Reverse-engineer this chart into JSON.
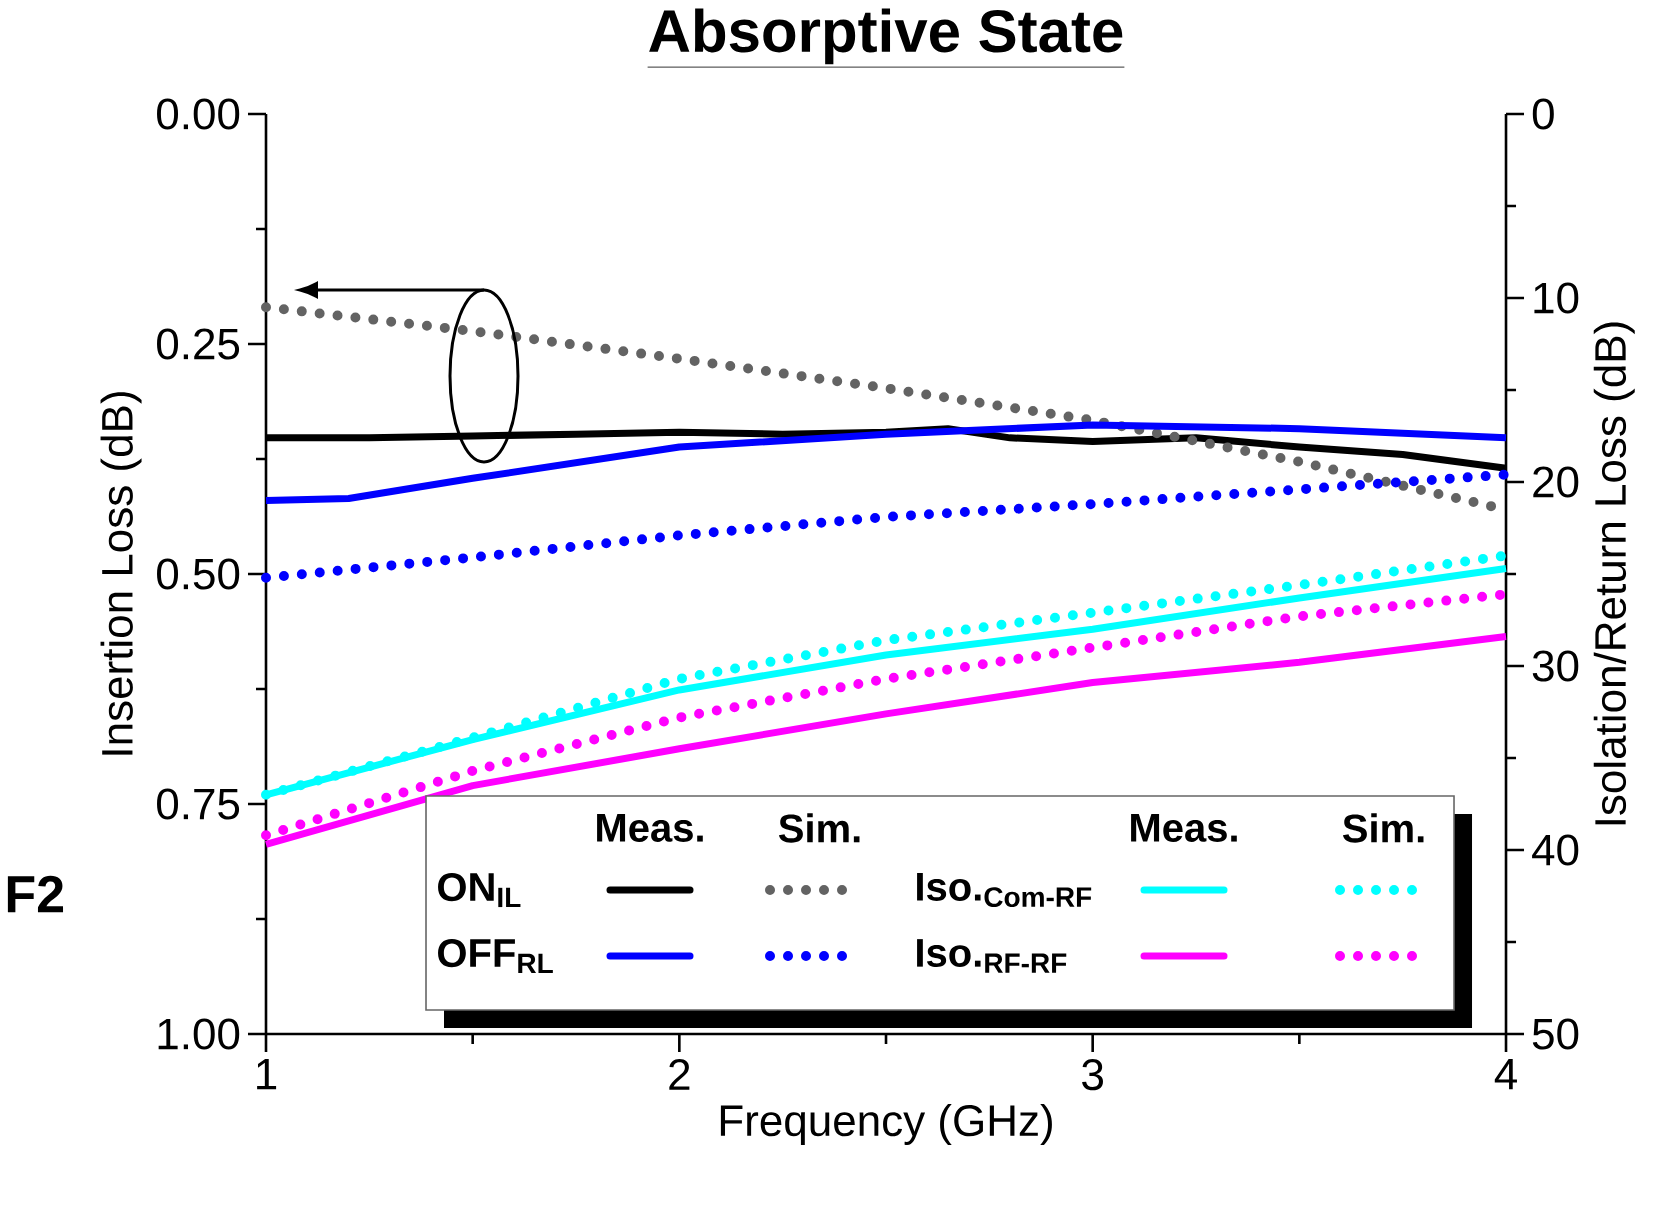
{
  "chart_data": {
    "type": "line",
    "title": "Absorptive State",
    "xlabel": "Frequency (GHz)",
    "ylabel": "Insertion Loss (dB)",
    "y2label": "Isolation/Return Loss (dB)",
    "x": [
      1,
      1.5,
      2,
      2.5,
      3,
      3.5,
      4
    ],
    "xlim": [
      1,
      4
    ],
    "xticks": [
      1,
      2,
      3,
      4
    ],
    "ylim": [
      1,
      0
    ],
    "yticks": [
      {
        "value": 0,
        "label": "0.00"
      },
      {
        "value": 0.25,
        "label": "0.25"
      },
      {
        "value": 0.5,
        "label": "0.50"
      },
      {
        "value": 0.75,
        "label": "0.75"
      },
      {
        "value": 1,
        "label": "1.00"
      }
    ],
    "y2lim": [
      50,
      0
    ],
    "y2ticks": [
      0,
      10,
      20,
      30,
      40,
      50
    ],
    "legend": "bottom",
    "annotations": [
      "Meas.",
      "Sim.",
      "Meas.",
      "Sim.",
      "F2"
    ],
    "series": [
      {
        "name": "ON$_{IL}$",
        "color": "#000000",
        "line_style": "solid",
        "x": [
          1,
          1.25,
          1.5,
          1.75,
          2,
          2.25,
          2.5,
          2.65,
          2.8,
          3,
          3.25,
          3.5,
          3.75,
          4
        ],
        "values": [
          0.352,
          0.352,
          0.35,
          0.348,
          0.346,
          0.348,
          0.346,
          0.342,
          0.352,
          0.356,
          0.352,
          0.362,
          0.37,
          0.385
        ]
      },
      {
        "color": "#636363",
        "line_style": "dotted",
        "values": [
          0.21,
          0.236,
          0.266,
          0.298,
          0.333,
          0.378,
          0.43
        ]
      },
      {
        "name": "OFF$_{RL}$",
        "color": "#0000ff",
        "line_style": "solid",
        "axis": "y2",
        "x": [
          1,
          1.2,
          1.5,
          2,
          2.5,
          3,
          3.5,
          4
        ],
        "values": [
          21.0,
          20.9,
          19.8,
          18.1,
          17.4,
          16.9,
          17.1,
          17.6
        ]
      },
      {
        "color": "#0000ff",
        "line_style": "dotted",
        "axis": "y2",
        "values": [
          25.2,
          24.1,
          22.9,
          21.9,
          21.2,
          20.4,
          19.6
        ]
      },
      {
        "name": "Iso.$_{Com-RF}$",
        "color": "#00ffff",
        "line_style": "solid",
        "axis": "y2",
        "values": [
          37.0,
          34.0,
          31.3,
          29.4,
          28.0,
          26.3,
          24.7
        ]
      },
      {
        "color": "#00ffff",
        "line_style": "dotted",
        "axis": "y2",
        "values": [
          37.0,
          33.9,
          30.7,
          28.6,
          27.1,
          25.6,
          24.0
        ]
      },
      {
        "name": "Iso.$_{RF-RF}$",
        "color": "#ff00ff",
        "line_style": "solid",
        "axis": "y2",
        "values": [
          39.7,
          36.5,
          34.5,
          32.6,
          30.9,
          29.8,
          28.4
        ]
      },
      {
        "color": "#ff00ff",
        "line_style": "dotted",
        "axis": "y2",
        "values": [
          39.2,
          35.7,
          32.8,
          30.7,
          29.0,
          27.3,
          26.1
        ]
      }
    ]
  }
}
